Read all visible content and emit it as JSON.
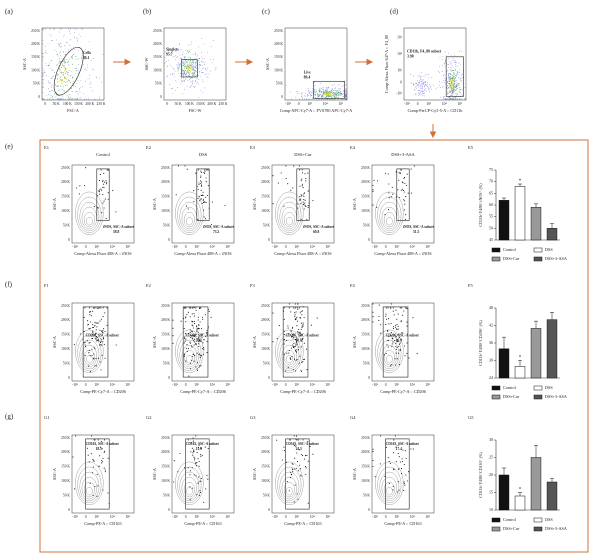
{
  "top_panels": [
    {
      "letter": "(a)",
      "y_label": "SSC-A",
      "x_label": "FSC-A",
      "gate_name": "Cells",
      "gate_value": "86.1",
      "y_axis": "linear",
      "x_axis": "linear"
    },
    {
      "letter": "(b)",
      "y_label": "SSC-W",
      "x_label": "FSC-W",
      "gate_name": "Singlets",
      "gate_value": "95.7",
      "y_axis": "linear",
      "x_axis": "linear"
    },
    {
      "letter": "(c)",
      "y_label": "SSC-A",
      "x_label": "Comp-APC-Cy7-A :: FVS780 APC-Cy7-A",
      "gate_name": "Live",
      "gate_value": "89.4",
      "y_axis": "linear",
      "x_axis": "fluor"
    },
    {
      "letter": "(d)",
      "y_label": "Comp-Alexa Fluor 647-A :: F4_80",
      "x_label": "Comp-PerCP-Cy5-5-A :: CD11b",
      "gate_name": "CD11b, F4_80 subset",
      "gate_value": "3.90",
      "y_axis": "fluor",
      "x_axis": "fluor"
    }
  ],
  "row_letters": [
    "(e)",
    "(f)",
    "(g)"
  ],
  "flow_axes": {
    "linear_ticks": [
      "250 K",
      "200 K",
      "150 K",
      "100 K",
      "50 K",
      "0"
    ],
    "linear_x_ticks": [
      "0",
      "50 K",
      "100 K",
      "150 K",
      "200 K",
      "250 K"
    ],
    "fluor_ticks": [
      "-10³",
      "0",
      "10³",
      "10⁴",
      "10⁵"
    ]
  },
  "flow_rows": [
    {
      "y_label": "SSC-A",
      "x_label": "Comp-Alexa Fluor 488-A :: iNOS",
      "gate_name": "iNOS, SSC-A subset",
      "panels": [
        {
          "id": "E1",
          "title": "Control",
          "gate_value": "58.8"
        },
        {
          "id": "E2",
          "title": "DSS",
          "gate_value": "73.2"
        },
        {
          "id": "E3",
          "title": "DSS+Cur",
          "gate_value": "60.8"
        },
        {
          "id": "E4",
          "title": "DSS+3-ASA",
          "gate_value": "51.5"
        }
      ]
    },
    {
      "y_label": "SSC-A",
      "x_label": "Comp-PE-Cy7-A :: CD206",
      "gate_name": "CD206, SSC-A subset",
      "panels": [
        {
          "id": "F1",
          "gate_value": "34.2"
        },
        {
          "id": "F2",
          "gate_value": "28.1"
        },
        {
          "id": "F3",
          "gate_value": "40.6"
        },
        {
          "id": "F4",
          "gate_value": "46.6"
        }
      ]
    },
    {
      "y_label": "SSC-A",
      "x_label": "Comp-PE-A :: CD163",
      "gate_name": "CD163, SSC-A subset",
      "panels": [
        {
          "id": "G1",
          "gate_value": "18.1"
        },
        {
          "id": "G2",
          "gate_value": "13.9"
        },
        {
          "id": "G3",
          "gate_value": "24.5"
        },
        {
          "id": "G4",
          "gate_value": "17.4"
        }
      ]
    }
  ],
  "chart_data": [
    {
      "type": "bar",
      "id": "E5",
      "y_label": "CD11b⁺F4/80⁺iNOS⁺ (%)",
      "categories": [
        "Control",
        "DSS",
        "DSS+Cur",
        "DSS+3-ASA"
      ],
      "values": [
        62,
        68,
        59,
        50
      ],
      "errors": [
        1,
        1,
        1.5,
        2
      ],
      "colors": [
        "#111111",
        "#ffffff",
        "#999999",
        "#555555"
      ],
      "ylim": [
        45,
        75
      ],
      "yticks": [
        45,
        50,
        55,
        60,
        65,
        70,
        75
      ],
      "annotations": [
        {
          "text": "*",
          "category": "DSS"
        }
      ]
    },
    {
      "type": "bar",
      "id": "F5",
      "y_label": "CD11b⁺F4/80⁺CD206⁺ (%)",
      "categories": [
        "Control",
        "DSS",
        "DSS+Cur",
        "DSS+3-ASA"
      ],
      "values": [
        34,
        28,
        41,
        44
      ],
      "errors": [
        4,
        2,
        2.5,
        2.5
      ],
      "colors": [
        "#111111",
        "#ffffff",
        "#999999",
        "#555555"
      ],
      "ylim": [
        24,
        48
      ],
      "yticks": [
        24,
        30,
        36,
        42,
        48
      ],
      "annotations": [
        {
          "text": "*",
          "category": "DSS"
        }
      ]
    },
    {
      "type": "bar",
      "id": "G5",
      "y_label": "CD11b⁺F4/80⁺CD163⁺ (%)",
      "categories": [
        "Control",
        "DSS",
        "DSS+Cur",
        "DSS+3-ASA"
      ],
      "values": [
        20,
        14,
        25,
        18
      ],
      "errors": [
        2,
        1,
        3.5,
        1
      ],
      "colors": [
        "#111111",
        "#ffffff",
        "#999999",
        "#555555"
      ],
      "ylim": [
        10,
        30
      ],
      "yticks": [
        10,
        15,
        20,
        25,
        30
      ],
      "annotations": [
        {
          "text": "*",
          "category": "DSS"
        }
      ]
    }
  ]
}
